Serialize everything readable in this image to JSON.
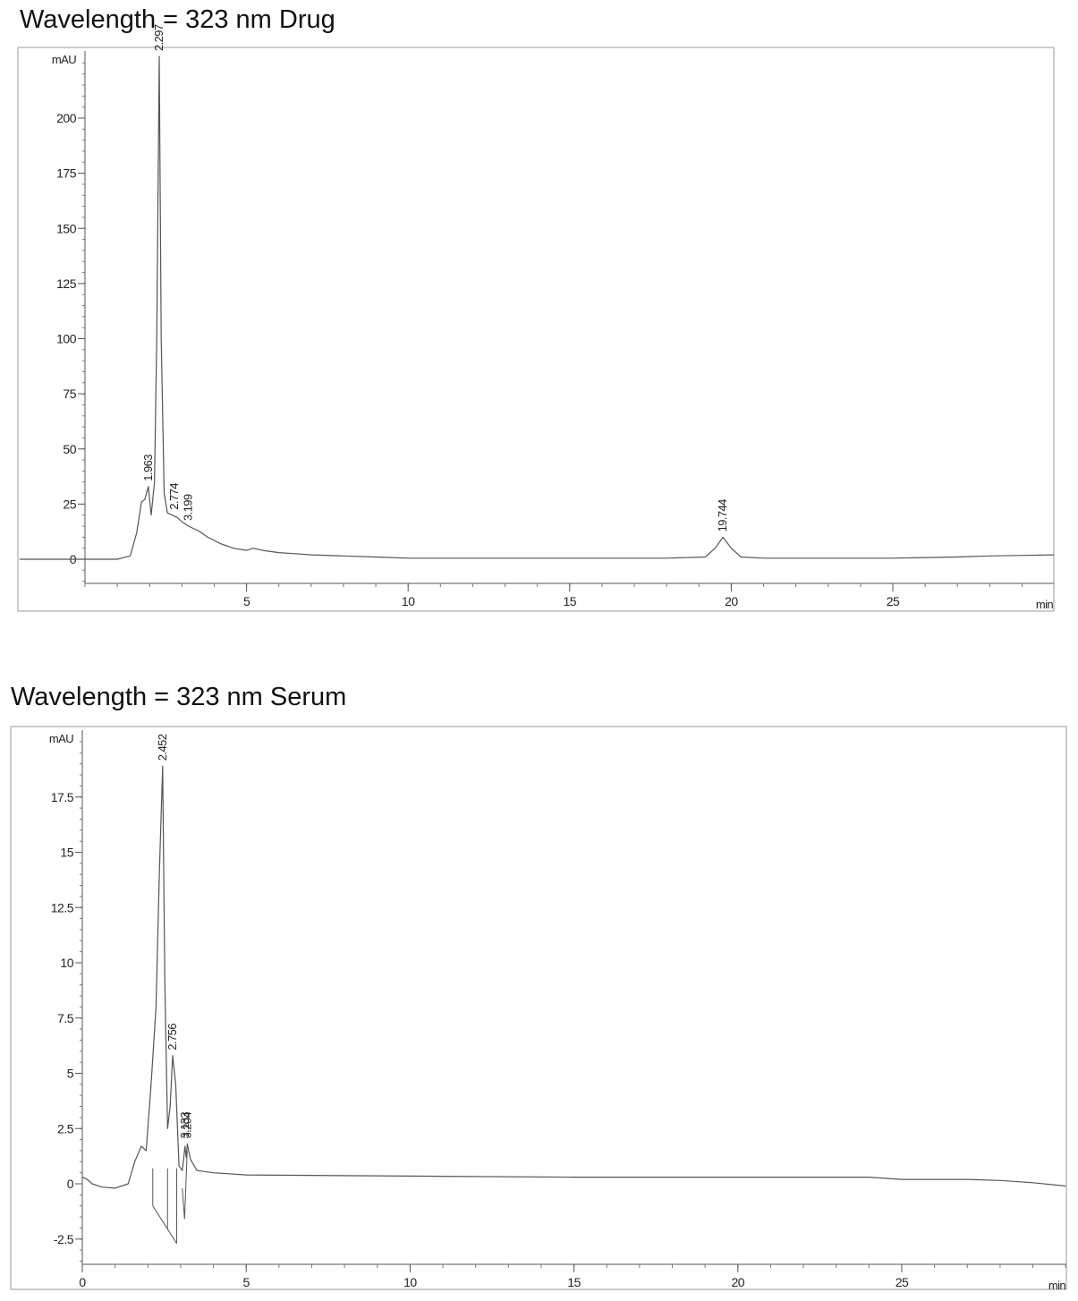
{
  "chart_data": [
    {
      "type": "line",
      "title": "Wavelength = 323 nm Drug",
      "ylabel": "mAU",
      "xlabel": "min",
      "xlim": [
        0,
        30
      ],
      "ylim": [
        -10,
        228
      ],
      "xticks_major": [
        5,
        10,
        15,
        20,
        25
      ],
      "yticks_major": [
        0,
        25,
        50,
        75,
        100,
        125,
        150,
        175,
        200
      ],
      "y_tick_labels_offset_from_axis": true,
      "grid": false,
      "peaks": [
        {
          "rt": 1.963,
          "label": "1.963",
          "height": 33
        },
        {
          "rt": 2.297,
          "label": "2.297",
          "height": 228
        },
        {
          "rt": 2.774,
          "label": "2.774",
          "height": 20
        },
        {
          "rt": 3.199,
          "label": "3.199",
          "height": 15
        },
        {
          "rt": 19.744,
          "label": "19.744",
          "height": 10
        }
      ],
      "series": [
        {
          "x": [
            -2.1,
            0,
            1,
            1.4,
            1.6,
            1.75,
            1.85,
            1.96,
            2.05,
            2.15,
            2.22,
            2.297,
            2.36,
            2.45,
            2.55,
            2.7,
            2.85,
            3.0,
            3.2,
            3.5,
            3.8,
            4.2,
            4.6,
            5.0,
            5.2,
            5.5,
            6,
            6.5,
            7,
            8,
            9,
            10,
            12,
            14,
            16,
            18,
            19.2,
            19.5,
            19.744,
            20.0,
            20.3,
            21,
            23,
            25,
            27,
            28,
            30
          ],
          "y": [
            0,
            0,
            0,
            1.5,
            12,
            26,
            27,
            33,
            20,
            35,
            100,
            228,
            100,
            30,
            21,
            20,
            19,
            17,
            15,
            13,
            10,
            7,
            5,
            4,
            5,
            4,
            3,
            2.5,
            2,
            1.5,
            1,
            0.5,
            0.5,
            0.5,
            0.5,
            0.5,
            1,
            5,
            10,
            5,
            1,
            0.5,
            0.5,
            0.5,
            1,
            1.5,
            2
          ]
        }
      ]
    },
    {
      "type": "line",
      "title": "Wavelength = 323 nm Serum",
      "ylabel": "mAU",
      "xlabel": "min",
      "xlim": [
        0,
        30
      ],
      "ylim": [
        -3.5,
        20
      ],
      "xticks_major": [
        0,
        5,
        10,
        15,
        20,
        25
      ],
      "yticks_major": [
        -2.5,
        0,
        2.5,
        5,
        7.5,
        10,
        12.5,
        15,
        17.5
      ],
      "grid": false,
      "peaks": [
        {
          "rt": 2.452,
          "label": "2.452",
          "height": 18.9
        },
        {
          "rt": 2.756,
          "label": "2.756",
          "height": 5.8
        },
        {
          "rt": 3.133,
          "label": "3.133",
          "height": 1.8
        },
        {
          "rt": 3.204,
          "label": "3.204",
          "height": 1.8
        }
      ],
      "series": [
        {
          "x": [
            0,
            0.15,
            0.3,
            0.6,
            1.0,
            1.4,
            1.6,
            1.8,
            1.95,
            2.1,
            2.25,
            2.35,
            2.452,
            2.52,
            2.6,
            2.68,
            2.756,
            2.85,
            2.95,
            3.05,
            3.133,
            3.17,
            3.204,
            3.3,
            3.5,
            4,
            5,
            10,
            15,
            20,
            24,
            25,
            27,
            28,
            29,
            30
          ],
          "y": [
            0.3,
            0.2,
            0.0,
            -0.15,
            -0.2,
            0,
            1.0,
            1.7,
            1.5,
            4.5,
            8,
            14,
            18.9,
            9,
            2.5,
            3.5,
            5.8,
            4.5,
            0.8,
            0.6,
            1.7,
            1.2,
            1.8,
            1.1,
            0.6,
            0.5,
            0.4,
            0.35,
            0.3,
            0.3,
            0.3,
            0.2,
            0.2,
            0.15,
            0.05,
            -0.1
          ]
        }
      ],
      "baseline_drops": [
        {
          "x1": 2.15,
          "y1": -1.0,
          "x2": 2.88,
          "y2": -2.7
        }
      ]
    }
  ]
}
